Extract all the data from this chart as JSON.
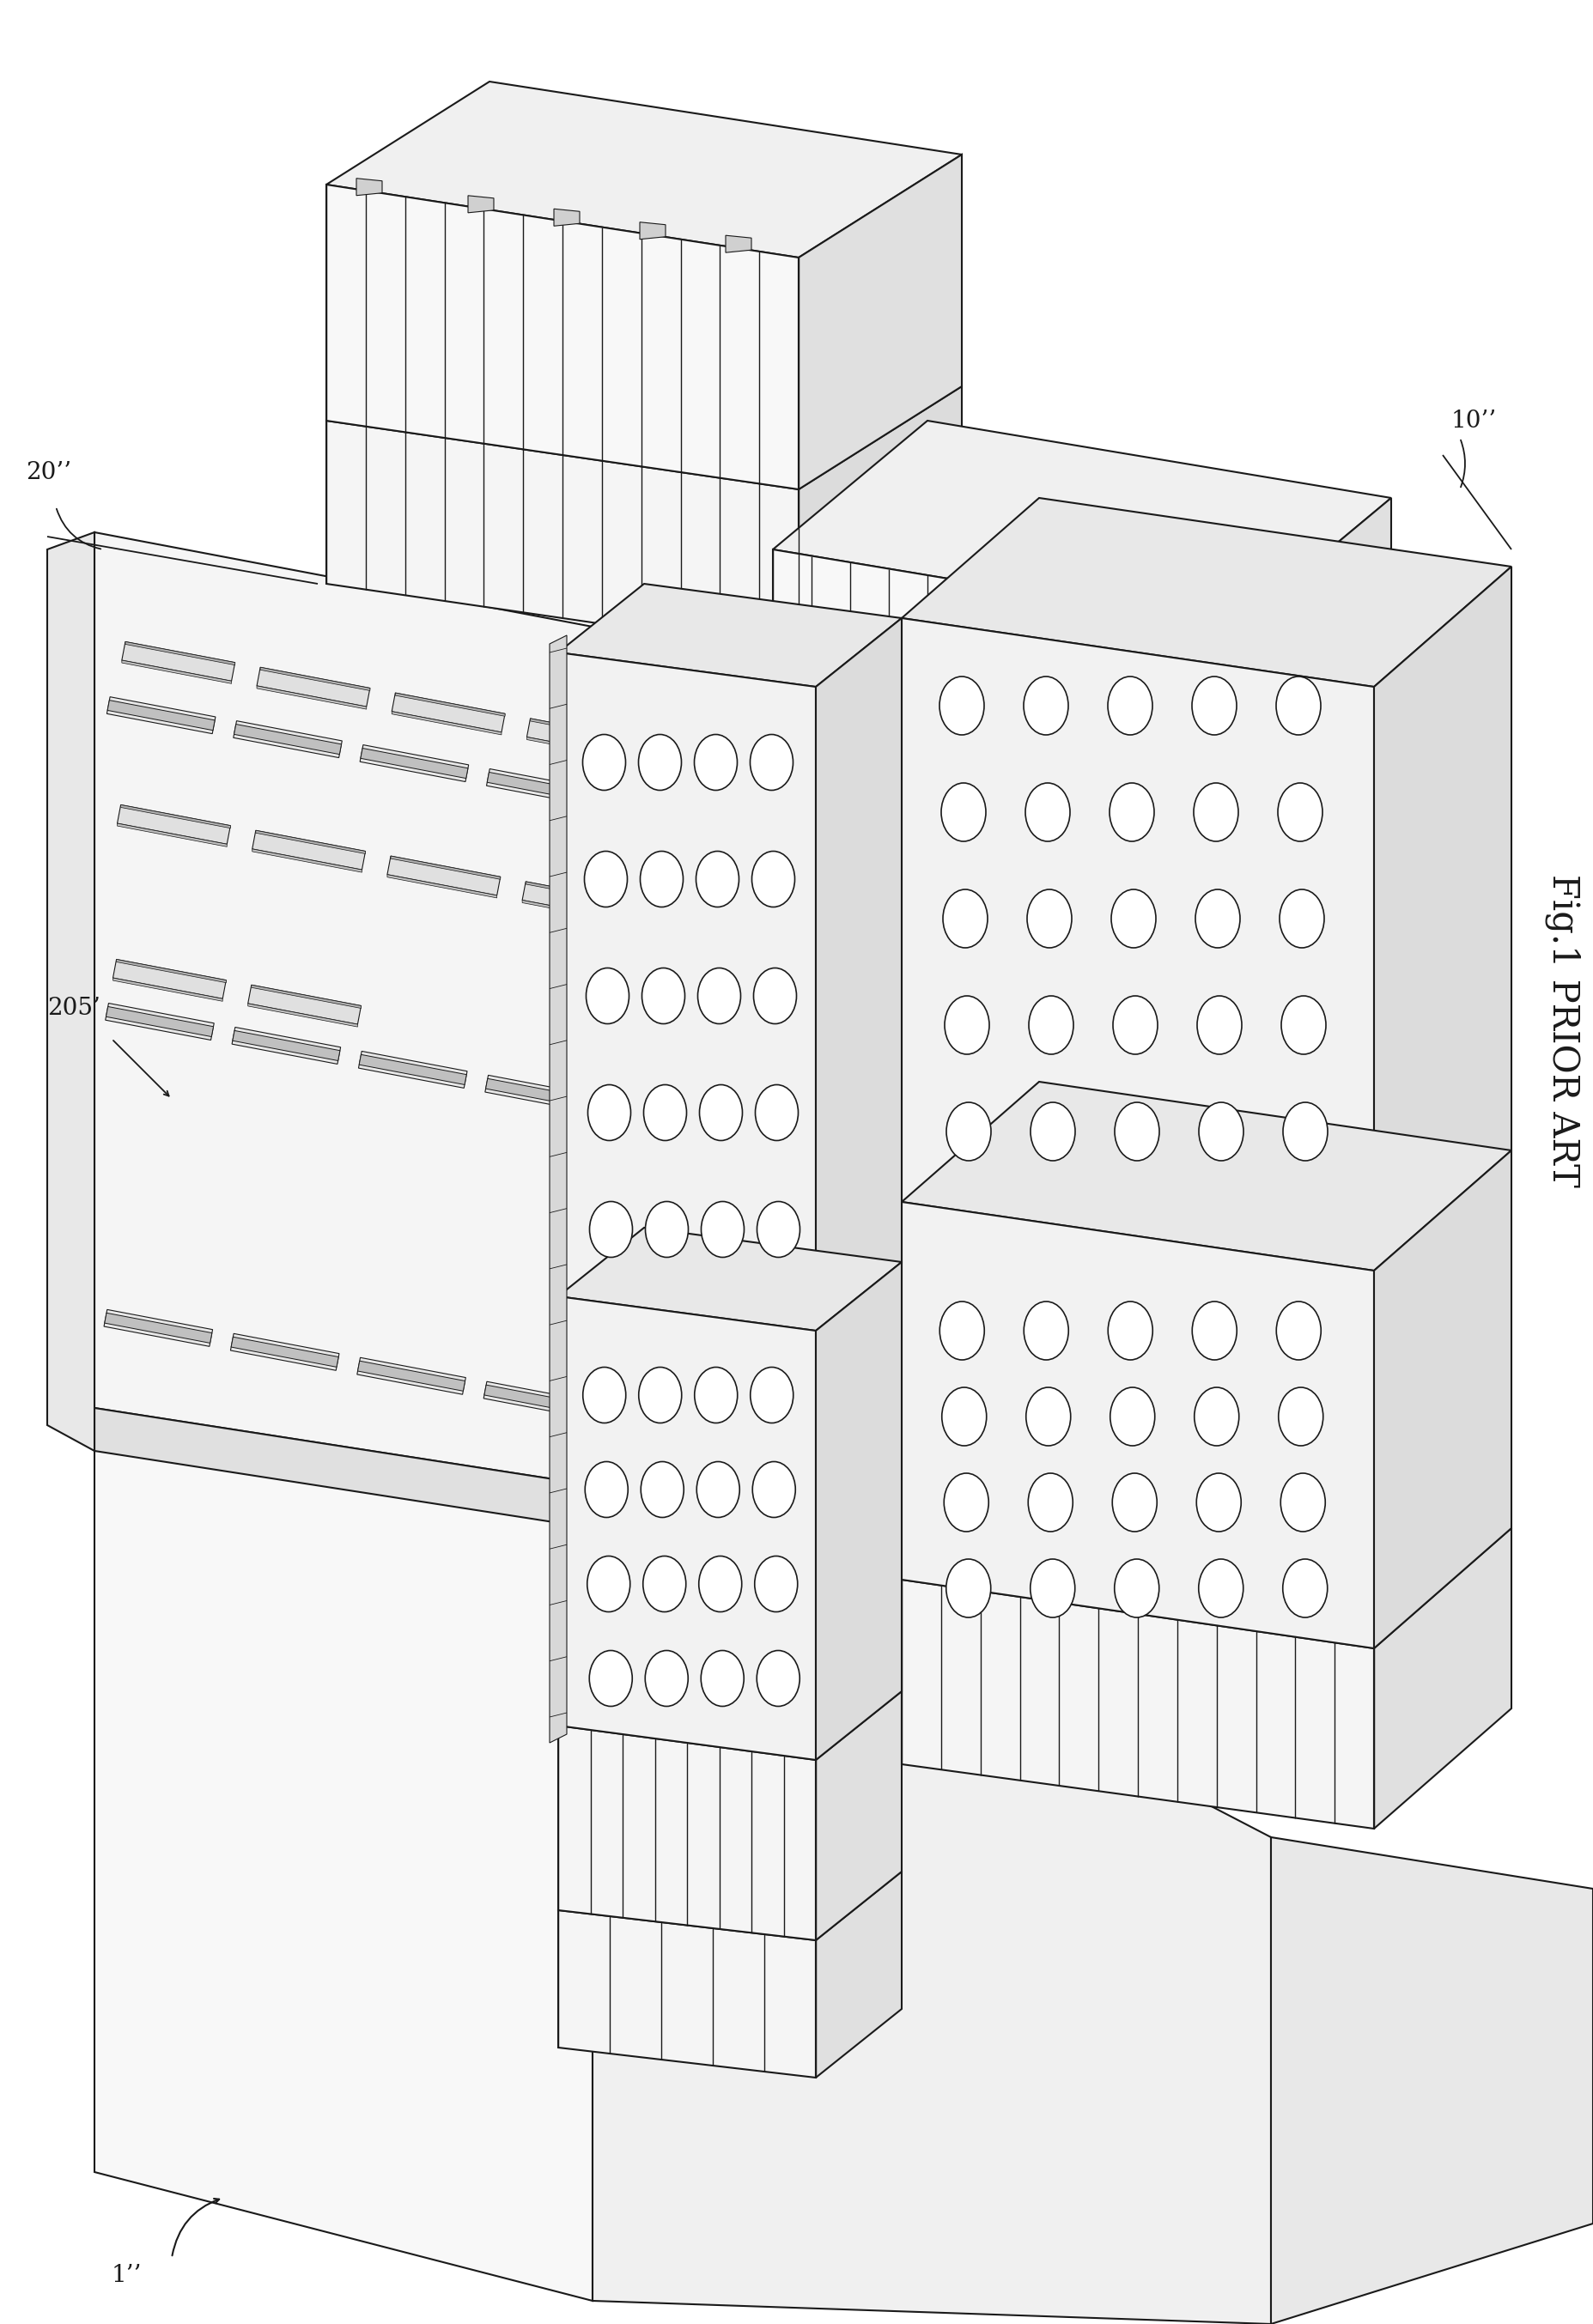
{
  "bg_color": "#ffffff",
  "line_color": "#1a1a1a",
  "fig_width": 18.55,
  "fig_height": 27.07,
  "title": "Fig.1 PRIOR ART",
  "labels": {
    "label_1": "1’’",
    "label_10": "10’’",
    "label_20": "20’’",
    "label_205": "205’"
  },
  "title_fontsize": 30,
  "label_fontsize": 20,
  "lw_main": 1.5,
  "lw_thin": 0.8,
  "lw_stripe": 1.0
}
